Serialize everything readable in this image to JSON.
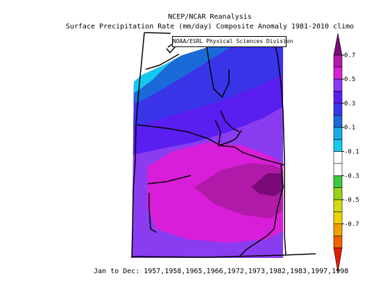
{
  "title_line1": "NCEP/NCAR Reanalysis",
  "title_line2": "Surface Precipitation Rate (mm/day) Composite Anomaly 1981-2010 climo",
  "credit": "NOAA/ESRL Physical Sciences Division",
  "footer": "Jan to Dec: 1957,1958,1965,1966,1972,1973,1982,1983,1997,1998",
  "colorbar": {
    "labels": [
      "0.7",
      "0.5",
      "0.3",
      "0.1",
      "-0.1",
      "-0.3",
      "-0.5",
      "-0.7"
    ],
    "bins": [
      {
        "color": "#7a0a78"
      },
      {
        "color": "#b01aa8"
      },
      {
        "color": "#d81ed8"
      },
      {
        "color": "#8a3cf0"
      },
      {
        "color": "#5a1ef0"
      },
      {
        "color": "#3a34e8"
      },
      {
        "color": "#1a6ad8"
      },
      {
        "color": "#1aaae8"
      },
      {
        "color": "#14c8f0"
      },
      {
        "color": "#ffffff"
      },
      {
        "color": "#ffffff"
      },
      {
        "color": "#3cc83c"
      },
      {
        "color": "#96d214"
      },
      {
        "color": "#d2dc14"
      },
      {
        "color": "#f0d200"
      },
      {
        "color": "#f0a000"
      },
      {
        "color": "#f06400"
      },
      {
        "color": "#e11e00"
      }
    ]
  }
}
